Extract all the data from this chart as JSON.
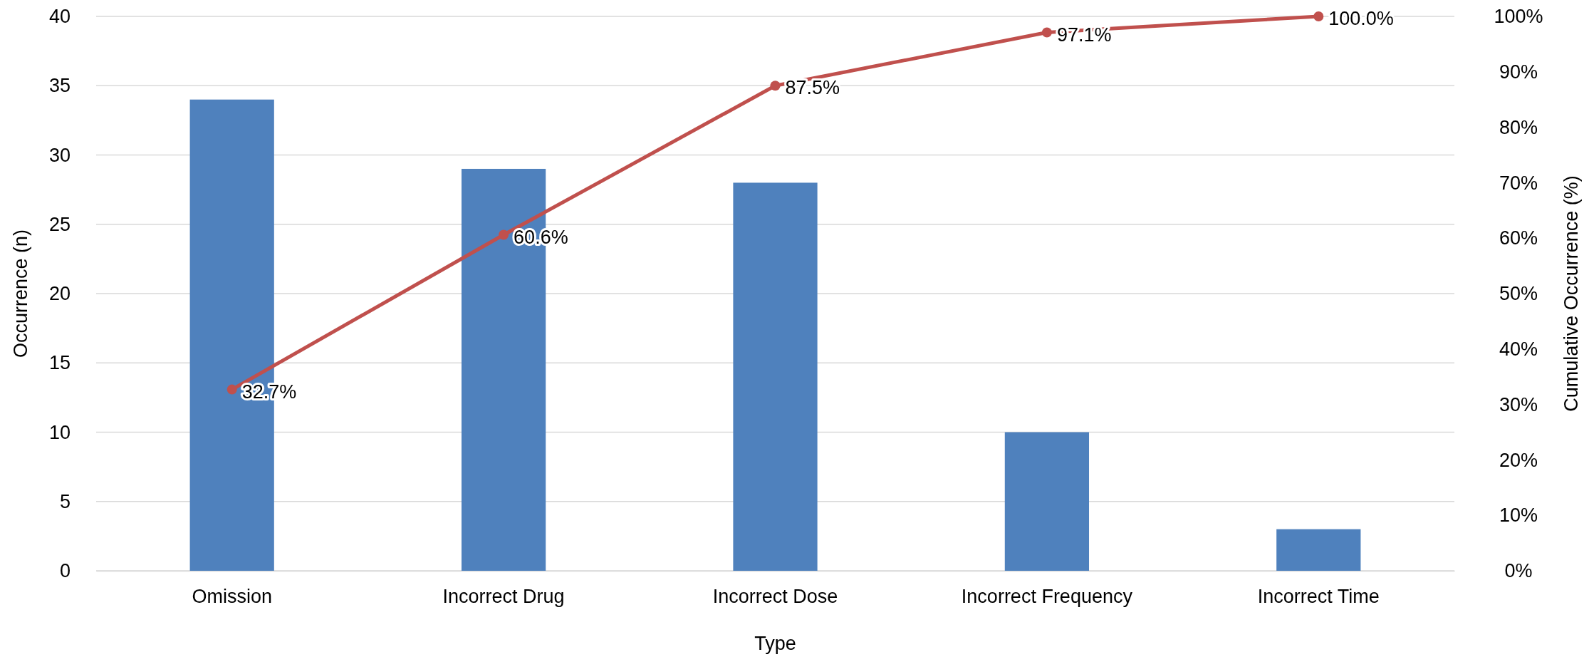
{
  "chart_data": {
    "type": "bar",
    "xlabel": "Type",
    "ylabel": "Occurrence (n)",
    "y2label": "Cumulative Occurrence (%)",
    "categories": [
      "Omission",
      "Incorrect Drug",
      "Incorrect Dose",
      "Incorrect Frequency",
      "Incorrect Time"
    ],
    "series": [
      {
        "color": "#4f81bd",
        "values": [
          34,
          29,
          28,
          10,
          3
        ]
      },
      {
        "type": "line",
        "axis": "y2",
        "color": "#c0504d",
        "marker": "circle",
        "values": [
          32.7,
          60.6,
          87.5,
          97.1,
          100.0
        ],
        "value_labels": [
          "32.7%",
          "60.6%",
          "87.5%",
          "97.1%",
          "100.0%"
        ]
      }
    ],
    "ylim": [
      0,
      40
    ],
    "yticks": [
      0,
      5,
      10,
      15,
      20,
      25,
      30,
      35,
      40
    ],
    "y2lim": [
      0,
      100
    ],
    "y2ticks": [
      {
        "value": 0,
        "label": "0%"
      },
      {
        "value": 10,
        "label": "10%"
      },
      {
        "value": 20,
        "label": "20%"
      },
      {
        "value": 30,
        "label": "30%"
      },
      {
        "value": 40,
        "label": "40%"
      },
      {
        "value": 50,
        "label": "50%"
      },
      {
        "value": 60,
        "label": "60%"
      },
      {
        "value": 70,
        "label": "70%"
      },
      {
        "value": 80,
        "label": "80%"
      },
      {
        "value": 90,
        "label": "90%"
      },
      {
        "value": 100,
        "label": "100%"
      }
    ],
    "grid": "y"
  }
}
